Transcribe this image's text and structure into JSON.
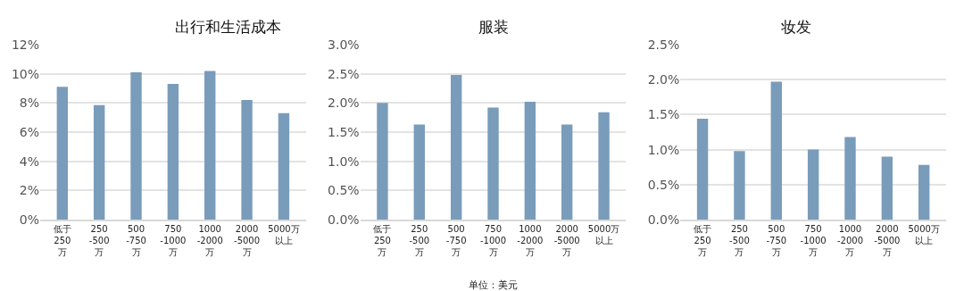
{
  "chart_data": [
    {
      "type": "bar",
      "title": "出行和生活成本",
      "categories": [
        "低于\n250\n万",
        "250\n-500\n万",
        "500\n-750\n万",
        "750\n-1000\n万",
        "1000\n-2000\n万",
        "2000\n-5000\n万",
        "5000万以上"
      ],
      "values": [
        9.1,
        7.85,
        10.1,
        9.3,
        10.2,
        8.2,
        7.3
      ],
      "color": "#7a9cbb",
      "ylim": [
        0,
        12
      ],
      "yticks": [
        {
          "value": 0,
          "label": "0%"
        },
        {
          "value": 2,
          "label": "2%"
        },
        {
          "value": 4,
          "label": "4%"
        },
        {
          "value": 6,
          "label": "6%"
        },
        {
          "value": 8,
          "label": "8%"
        },
        {
          "value": 10,
          "label": "10%"
        },
        {
          "value": 12,
          "label": "12%"
        }
      ],
      "grid": "y"
    },
    {
      "type": "bar",
      "title": "服装",
      "categories": [
        "低于\n250\n万",
        "250\n-500\n万",
        "500\n-750\n万",
        "750\n-1000\n万",
        "1000\n-2000\n万",
        "2000\n-5000\n万",
        "5000万以上"
      ],
      "values": [
        2.0,
        1.63,
        2.48,
        1.92,
        2.02,
        1.63,
        1.84
      ],
      "color": "#7a9cbb",
      "ylim": [
        0,
        3
      ],
      "yticks": [
        {
          "value": 0,
          "label": "0.0%"
        },
        {
          "value": 0.5,
          "label": "0.5%"
        },
        {
          "value": 1,
          "label": "1.0%"
        },
        {
          "value": 1.5,
          "label": "1.5%"
        },
        {
          "value": 2,
          "label": "2.0%"
        },
        {
          "value": 2.5,
          "label": "2.5%"
        },
        {
          "value": 3,
          "label": "3.0%"
        }
      ],
      "grid": "y",
      "annotations": [
        "单位：美元"
      ]
    },
    {
      "type": "bar",
      "title": "妆发",
      "categories": [
        "低于\n250\n万",
        "250\n-500\n万",
        "500\n-750\n万",
        "750\n-1000\n万",
        "1000\n-2000\n万",
        "2000\n-5000\n万",
        "5000万以上"
      ],
      "values": [
        1.44,
        0.98,
        1.97,
        1.0,
        1.18,
        0.9,
        0.78
      ],
      "color": "#7a9cbb",
      "ylim": [
        0,
        2.5
      ],
      "yticks": [
        {
          "value": 0,
          "label": "0.0%"
        },
        {
          "value": 0.5,
          "label": "0.5%"
        },
        {
          "value": 1,
          "label": "1.0%"
        },
        {
          "value": 1.5,
          "label": "1.5%"
        },
        {
          "value": 2,
          "label": "2.0%"
        },
        {
          "value": 2.5,
          "label": "2.5%"
        }
      ],
      "grid": "y"
    }
  ]
}
